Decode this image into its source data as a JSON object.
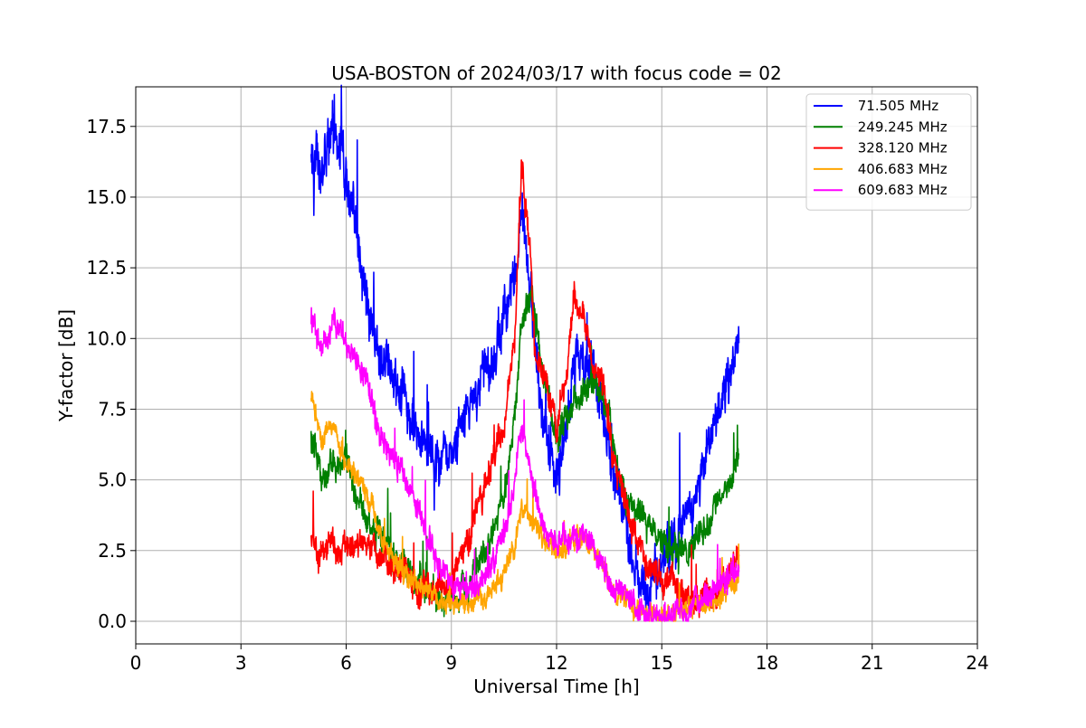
{
  "chart_data": {
    "type": "line",
    "title": "USA-BOSTON of 2024/03/17 with focus code = 02",
    "xlabel": "Universal Time [h]",
    "ylabel": "Y-factor [dB]",
    "xlim": [
      0,
      24
    ],
    "ylim": [
      -0.8,
      18.9
    ],
    "xticks": [
      0,
      3,
      6,
      9,
      12,
      15,
      18,
      21,
      24
    ],
    "xtick_labels": [
      "0",
      "3",
      "6",
      "9",
      "12",
      "15",
      "18",
      "21",
      "24"
    ],
    "yticks": [
      0,
      2.5,
      5,
      7.5,
      10,
      12.5,
      15,
      17.5
    ],
    "ytick_labels": [
      "0.0",
      "2.5",
      "5.0",
      "7.5",
      "10.0",
      "12.5",
      "15.0",
      "17.5"
    ],
    "grid": true,
    "legend_position": "top-right",
    "series": [
      {
        "name": " 71.505 MHz",
        "color": "#0000ff",
        "noise": 1.2,
        "x": [
          5.0,
          5.3,
          5.6,
          5.8,
          6.0,
          6.3,
          6.6,
          7.0,
          7.5,
          8.0,
          8.5,
          9.0,
          9.5,
          10.0,
          10.5,
          10.8,
          11.0,
          11.3,
          11.6,
          12.0,
          12.3,
          12.6,
          13.0,
          13.3,
          13.6,
          14.0,
          14.3,
          14.6,
          15.0,
          15.3,
          15.6,
          16.0,
          16.3,
          16.6,
          17.0,
          17.2
        ],
        "y": [
          17.0,
          15.8,
          17.2,
          17.0,
          15.5,
          13.5,
          11.0,
          9.5,
          8.0,
          7.0,
          5.5,
          6.0,
          7.5,
          9.0,
          10.5,
          12.0,
          14.5,
          11.0,
          7.5,
          5.0,
          7.0,
          9.5,
          9.0,
          7.5,
          5.5,
          3.5,
          1.5,
          1.2,
          2.0,
          3.0,
          3.5,
          4.5,
          6.0,
          7.5,
          9.0,
          10.0
        ]
      },
      {
        "name": " 249.245 MHz",
        "color": "#008000",
        "noise": 0.7,
        "x": [
          5.0,
          5.3,
          5.6,
          6.0,
          6.3,
          6.6,
          7.0,
          7.5,
          8.0,
          8.4,
          8.7,
          9.0,
          9.5,
          10.0,
          10.5,
          10.8,
          11.0,
          11.3,
          11.6,
          12.0,
          12.5,
          13.0,
          13.5,
          13.8,
          14.0,
          14.5,
          15.0,
          15.5,
          16.0,
          16.5,
          17.0,
          17.2
        ],
        "y": [
          6.5,
          5.0,
          5.8,
          5.5,
          4.5,
          3.5,
          3.0,
          2.2,
          1.5,
          0.9,
          0.6,
          0.8,
          1.5,
          2.5,
          4.5,
          7.0,
          10.5,
          11.5,
          9.0,
          6.5,
          8.0,
          8.5,
          7.5,
          5.0,
          4.2,
          3.5,
          2.8,
          2.3,
          3.0,
          3.8,
          5.0,
          6.0
        ]
      },
      {
        "name": " 328.120 MHz",
        "color": "#ff0000",
        "noise": 0.7,
        "x": [
          5.0,
          5.3,
          5.6,
          5.8,
          6.0,
          6.3,
          6.6,
          7.0,
          7.5,
          8.0,
          8.5,
          9.0,
          9.5,
          10.0,
          10.5,
          10.8,
          11.0,
          11.2,
          11.4,
          11.7,
          12.0,
          12.3,
          12.5,
          12.8,
          13.0,
          13.3,
          13.6,
          14.0,
          14.3,
          14.6,
          15.0,
          15.5,
          16.0,
          16.5,
          17.0,
          17.2
        ],
        "y": [
          3.0,
          2.3,
          2.8,
          1.8,
          3.0,
          2.8,
          2.5,
          2.2,
          1.8,
          1.3,
          1.0,
          1.5,
          3.0,
          5.0,
          7.0,
          10.0,
          16.0,
          14.0,
          9.5,
          8.5,
          7.0,
          9.0,
          11.5,
          11.0,
          9.0,
          8.5,
          6.0,
          4.0,
          2.8,
          2.0,
          1.5,
          1.0,
          0.7,
          0.9,
          1.8,
          2.3
        ]
      },
      {
        "name": " 406.683 MHz",
        "color": "#ffa500",
        "noise": 0.5,
        "x": [
          5.0,
          5.3,
          5.6,
          6.0,
          6.3,
          6.6,
          7.0,
          7.5,
          8.0,
          8.5,
          9.0,
          9.5,
          10.0,
          10.5,
          10.8,
          11.0,
          11.3,
          11.6,
          12.0,
          12.3,
          12.6,
          13.0,
          13.3,
          13.6,
          14.0,
          14.3,
          14.6,
          15.0,
          15.5,
          16.0,
          16.5,
          17.0,
          17.2
        ],
        "y": [
          8.0,
          6.5,
          7.0,
          5.5,
          5.0,
          4.5,
          3.0,
          2.0,
          1.3,
          0.9,
          0.5,
          0.5,
          0.9,
          1.7,
          2.5,
          4.0,
          3.5,
          3.0,
          2.5,
          2.6,
          3.0,
          2.7,
          2.0,
          1.2,
          0.8,
          0.4,
          0.3,
          0.2,
          0.3,
          0.5,
          0.8,
          1.2,
          1.5
        ]
      },
      {
        "name": " 609.683 MHz",
        "color": "#ff00ff",
        "noise": 0.6,
        "x": [
          5.0,
          5.3,
          5.6,
          5.8,
          6.0,
          6.3,
          6.6,
          7.0,
          7.5,
          8.0,
          8.5,
          9.0,
          9.5,
          10.0,
          10.5,
          10.8,
          11.0,
          11.3,
          11.6,
          12.0,
          12.3,
          12.6,
          13.0,
          13.3,
          13.6,
          14.0,
          14.3,
          14.6,
          15.0,
          15.5,
          16.0,
          16.5,
          17.0,
          17.2
        ],
        "y": [
          10.8,
          9.7,
          10.5,
          10.5,
          10.0,
          9.0,
          8.5,
          6.5,
          5.5,
          4.0,
          2.5,
          1.2,
          1.0,
          1.5,
          3.0,
          5.0,
          7.0,
          5.0,
          3.5,
          2.8,
          2.8,
          3.0,
          2.6,
          2.0,
          1.2,
          0.8,
          0.5,
          0.3,
          0.2,
          0.2,
          0.5,
          1.0,
          1.8,
          2.2
        ]
      }
    ]
  }
}
